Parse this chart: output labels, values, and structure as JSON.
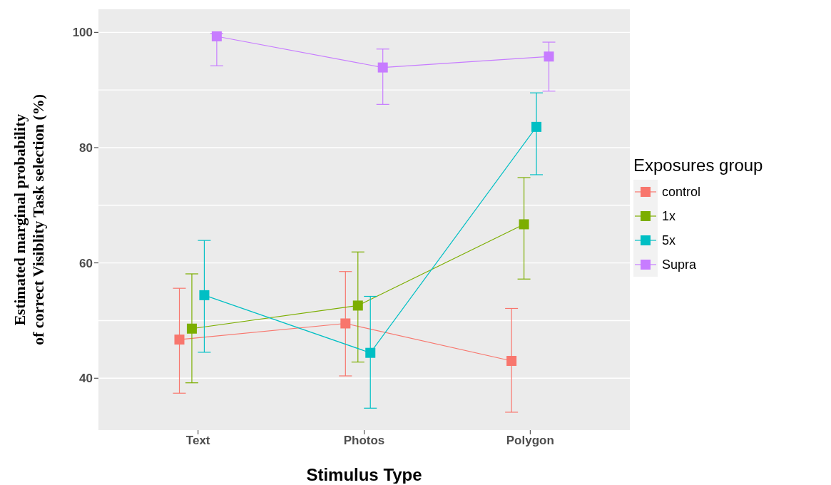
{
  "chart_data": {
    "type": "line",
    "xlabel": "Stimulus Type",
    "ylabel": "Estimated marginal probability\nof correct Visiblity Task selection (%)",
    "legend_title": "Exposures group",
    "categories": [
      "Text",
      "Photos",
      "Polygon"
    ],
    "series": [
      {
        "name": "control",
        "color": "#f8766d",
        "values": [
          46.7,
          49.5,
          43.0
        ],
        "errors": [
          [
            37.4,
            55.6
          ],
          [
            40.4,
            58.5
          ],
          [
            34.1,
            52.1
          ]
        ]
      },
      {
        "name": "1x",
        "color": "#7cae00",
        "values": [
          48.6,
          52.6,
          66.7
        ],
        "errors": [
          [
            39.2,
            58.1
          ],
          [
            42.8,
            61.9
          ],
          [
            57.2,
            74.8
          ]
        ]
      },
      {
        "name": "5x",
        "color": "#00bfc4",
        "values": [
          54.4,
          44.4,
          83.6
        ],
        "errors": [
          [
            44.5,
            63.9
          ],
          [
            34.8,
            54.2
          ],
          [
            75.3,
            89.5
          ]
        ]
      },
      {
        "name": "Supra",
        "color": "#c77cff",
        "values": [
          99.3,
          93.9,
          95.8
        ],
        "errors": [
          [
            94.2,
            99.8
          ],
          [
            87.5,
            97.1
          ],
          [
            89.8,
            98.3
          ]
        ]
      }
    ],
    "ylim": [
      31,
      104
    ],
    "yticks": [
      40,
      60,
      80,
      100
    ],
    "grid": "y",
    "legend": "right",
    "marker": "square",
    "line_style": "solid"
  }
}
